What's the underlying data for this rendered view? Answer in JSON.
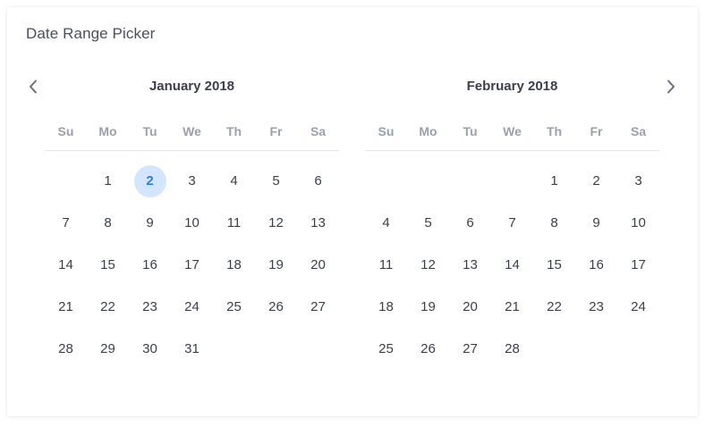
{
  "title": "Date Range Picker",
  "weekdays": [
    "Su",
    "Mo",
    "Tu",
    "We",
    "Th",
    "Fr",
    "Sa"
  ],
  "nav": {
    "prev_icon": "chevron-left-icon",
    "next_icon": "chevron-right-icon"
  },
  "months": [
    {
      "label": "January 2018",
      "leading_blanks": 1,
      "days": [
        "1",
        "2",
        "3",
        "4",
        "5",
        "6",
        "7",
        "8",
        "9",
        "10",
        "11",
        "12",
        "13",
        "14",
        "15",
        "16",
        "17",
        "18",
        "19",
        "20",
        "21",
        "22",
        "23",
        "24",
        "25",
        "26",
        "27",
        "28",
        "29",
        "30",
        "31"
      ],
      "highlighted_day": "2"
    },
    {
      "label": "February 2018",
      "leading_blanks": 4,
      "days": [
        "1",
        "2",
        "3",
        "4",
        "5",
        "6",
        "7",
        "8",
        "9",
        "10",
        "11",
        "12",
        "13",
        "14",
        "15",
        "16",
        "17",
        "18",
        "19",
        "20",
        "21",
        "22",
        "23",
        "24",
        "25",
        "26",
        "27",
        "28"
      ],
      "highlighted_day": null
    }
  ],
  "colors": {
    "highlight_bg": "#d4e6ff",
    "highlight_text": "#2f7de1",
    "weekday_text": "#9aa0ad",
    "day_text": "#3b3f4c"
  }
}
